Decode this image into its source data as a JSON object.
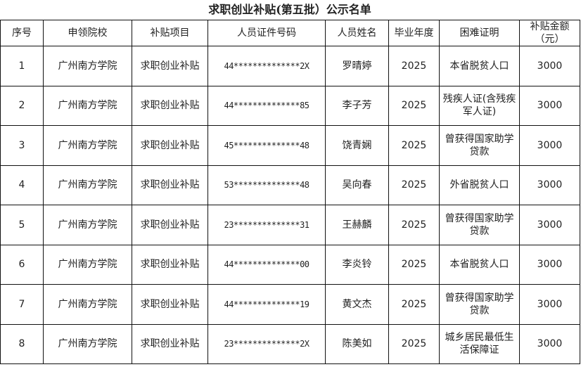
{
  "title": "求职创业补贴(第五批）公示名单",
  "headers": [
    "序号",
    "申领院校",
    "补贴项目",
    "人员证件号码",
    "人员姓名",
    "毕业年度",
    "困难证明",
    "补贴金额（元）"
  ],
  "rows": [
    [
      "1",
      "广州南方学院",
      "求职创业补贴",
      "44**************2X",
      "罗晴婷",
      "2025",
      "本省脱贫人口",
      "3000"
    ],
    [
      "2",
      "广州南方学院",
      "求职创业补贴",
      "44**************85",
      "李子芳",
      "2025",
      "残疾人证(含残疾军人证)",
      "3000"
    ],
    [
      "3",
      "广州南方学院",
      "求职创业补贴",
      "45**************48",
      "饶青娴",
      "2025",
      "曾获得国家助学贷款",
      "3000"
    ],
    [
      "4",
      "广州南方学院",
      "求职创业补贴",
      "53**************48",
      "吴向春",
      "2025",
      "外省脱贫人口",
      "3000"
    ],
    [
      "5",
      "广州南方学院",
      "求职创业补贴",
      "23**************31",
      "王赫麟",
      "2025",
      "曾获得国家助学贷款",
      "3000"
    ],
    [
      "6",
      "广州南方学院",
      "求职创业补贴",
      "44**************00",
      "李炎铃",
      "2025",
      "本省脱贫人口",
      "3000"
    ],
    [
      "7",
      "广州南方学院",
      "求职创业补贴",
      "44**************19",
      "黄文杰",
      "2025",
      "曾获得国家助学贷款",
      "3000"
    ],
    [
      "8",
      "广州南方学院",
      "求职创业补贴",
      "23**************2X",
      "陈美如",
      "2025",
      "城乡居民最低生活保障证",
      "3000"
    ]
  ]
}
